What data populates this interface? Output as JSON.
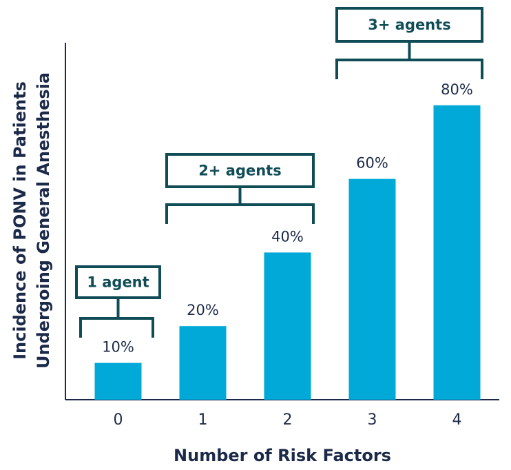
{
  "chart_data": {
    "type": "bar",
    "x_label": "Number of Risk Factors",
    "y_label": [
      "Incidence of PONV in Patients",
      "Undergoing General Anesthesia"
    ],
    "categories": [
      "0",
      "1",
      "2",
      "3",
      "4"
    ],
    "values": [
      10,
      20,
      40,
      60,
      80
    ],
    "value_labels": [
      "10%",
      "20%",
      "40%",
      "60%",
      "80%"
    ],
    "color": "#00a9d8",
    "ylim": [
      0,
      97
    ],
    "annotations": [
      "1 agent",
      "2+ agents",
      "3+ agents"
    ]
  }
}
